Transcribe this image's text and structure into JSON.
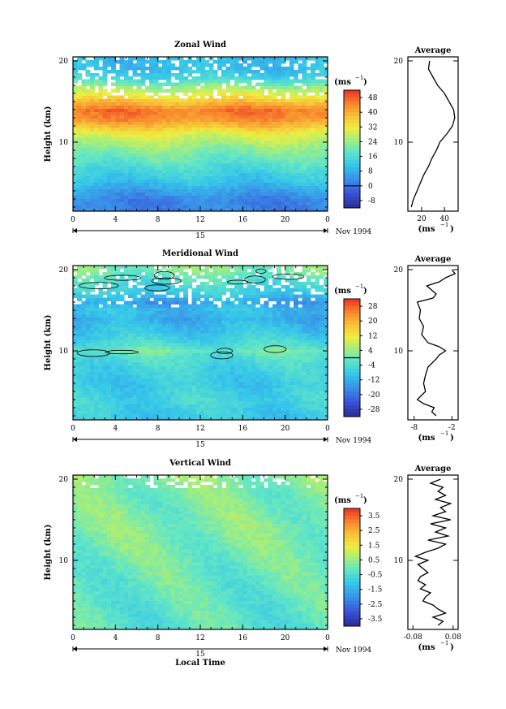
{
  "chart_data": [
    {
      "type": "heatmap",
      "title": "Zonal Wind",
      "ylabel": "Height (km)",
      "xlabel": "",
      "date_label": "Nov 1994",
      "day_label": "15",
      "unit_label": "(ms",
      "unit_exp": "−1",
      "x_ticks": [
        "0",
        "4",
        "8",
        "12",
        "16",
        "20",
        "0"
      ],
      "y_ticks": [
        "10",
        "20"
      ],
      "xlim": [
        0,
        24
      ],
      "ylim": [
        1.5,
        20.5
      ],
      "colorbar": {
        "ticks": [
          "48",
          "40",
          "32",
          "24",
          "16",
          "8",
          "0",
          "-8"
        ],
        "min": -12,
        "max": 52,
        "zero_line": 0
      },
      "field": {
        "levels": [
          3,
          5,
          7,
          9,
          11,
          12,
          13,
          14,
          15,
          17,
          18,
          19
        ],
        "values": [
          2,
          10,
          16,
          22,
          30,
          38,
          44,
          46,
          38,
          22,
          14,
          10
        ],
        "gaps_from_km": 15.5,
        "diurnal_amp": 2.0
      },
      "profile": {
        "title": "Average",
        "x_ticks": [
          "20",
          "40"
        ],
        "xlim": [
          8,
          52
        ],
        "x_axis_label": "(ms",
        "x_axis_exp": "−1",
        "heights": [
          2,
          3,
          4,
          5,
          6,
          7,
          8,
          9,
          10,
          11,
          12,
          13,
          14,
          15,
          16,
          17,
          18,
          19,
          20
        ],
        "values": [
          11,
          13,
          16,
          19,
          22,
          26,
          29,
          33,
          36,
          42,
          47,
          49,
          48,
          44,
          40,
          34,
          30,
          26,
          27
        ]
      }
    },
    {
      "type": "heatmap",
      "title": "Meridional Wind",
      "ylabel": "Height (km)",
      "xlabel": "",
      "date_label": "Nov 1994",
      "day_label": "15",
      "unit_label": "(ms",
      "unit_exp": "−1",
      "x_ticks": [
        "0",
        "4",
        "8",
        "12",
        "16",
        "20",
        "0"
      ],
      "y_ticks": [
        "10",
        "20"
      ],
      "xlim": [
        0,
        24
      ],
      "ylim": [
        1.5,
        20.5
      ],
      "colorbar": {
        "ticks": [
          "28",
          "20",
          "12",
          "4",
          "-4",
          "-12",
          "-20",
          "-28"
        ],
        "min": -32,
        "max": 32,
        "zero_line": 0
      },
      "field": {
        "levels": [
          2,
          4,
          6,
          8,
          9.5,
          10,
          10.5,
          12,
          14,
          15,
          16,
          17,
          18,
          19,
          20
        ],
        "values": [
          -8,
          -6,
          -8,
          -6,
          -3,
          0,
          -3,
          -8,
          -12,
          -10,
          -14,
          -8,
          -5,
          -2,
          2
        ],
        "gaps_from_km": 15.5,
        "diurnal_amp": 2.5
      },
      "profile": {
        "title": "Average",
        "x_ticks": [
          "-8",
          "-2"
        ],
        "xlim": [
          -9,
          -1
        ],
        "x_axis_label": "(ms",
        "x_axis_exp": "−1",
        "heights": [
          2,
          2.5,
          3,
          3.5,
          4,
          5,
          6,
          7,
          8,
          9,
          9.5,
          10,
          10.5,
          11,
          12,
          13,
          14,
          15,
          16,
          16.5,
          17,
          18,
          18.5,
          19,
          19.5,
          20
        ],
        "values": [
          -4.5,
          -5.2,
          -4.8,
          -6.5,
          -7.5,
          -6.2,
          -6.5,
          -6.2,
          -5.8,
          -4.5,
          -4,
          -3,
          -4,
          -5.8,
          -6.8,
          -6.5,
          -7.2,
          -7,
          -7.5,
          -5,
          -4.5,
          -6,
          -4,
          -3,
          -1.5,
          -2
        ]
      },
      "contour": true
    },
    {
      "type": "heatmap",
      "title": "Vertical Wind",
      "ylabel": "Height (km)",
      "xlabel": "Local Time",
      "date_label": "Nov 1994",
      "day_label": "15",
      "unit_label": "(ms",
      "unit_exp": "−1",
      "x_ticks": [
        "0",
        "4",
        "8",
        "12",
        "16",
        "20",
        "0"
      ],
      "y_ticks": [
        "10",
        "20"
      ],
      "xlim": [
        0,
        24
      ],
      "ylim": [
        1.5,
        20.5
      ],
      "colorbar": {
        "ticks": [
          "3.5",
          "2.5",
          "1.5",
          "0.5",
          "-0.5",
          "-1.5",
          "-2.5",
          "-3.5"
        ],
        "min": -4,
        "max": 4,
        "zero_line": null
      },
      "field": {
        "levels": [
          2,
          6,
          10,
          14,
          18,
          20
        ],
        "values": [
          -0.3,
          -0.2,
          0.0,
          0.2,
          0.1,
          0.3
        ],
        "gaps_from_km": 19.0,
        "diurnal_amp": 0.4
      },
      "profile": {
        "title": "Average",
        "x_ticks": [
          "-0.08",
          "0.08"
        ],
        "xlim": [
          -0.1,
          0.1
        ],
        "x_axis_label": "(ms",
        "x_axis_exp": "−1",
        "heights": [
          2,
          2.5,
          3,
          3.5,
          4,
          4.5,
          5,
          5.5,
          6,
          6.5,
          7,
          7.5,
          8,
          8.5,
          9,
          9.5,
          10,
          10.5,
          11,
          11.5,
          12,
          12.5,
          13,
          13.5,
          14,
          14.5,
          15,
          15.5,
          16,
          16.5,
          17,
          17.5,
          18,
          18.5,
          19,
          19.5,
          20
        ],
        "values": [
          0.02,
          0.04,
          0.0,
          0.05,
          0.02,
          0.0,
          -0.04,
          -0.03,
          -0.01,
          -0.05,
          -0.03,
          -0.06,
          -0.05,
          -0.02,
          -0.04,
          -0.06,
          -0.02,
          -0.07,
          -0.03,
          0.02,
          0.05,
          -0.02,
          0.06,
          0.01,
          0.05,
          -0.01,
          0.07,
          0.0,
          0.05,
          0.03,
          0.07,
          0.01,
          0.05,
          0.02,
          0.04,
          -0.01,
          0.03
        ]
      }
    }
  ]
}
